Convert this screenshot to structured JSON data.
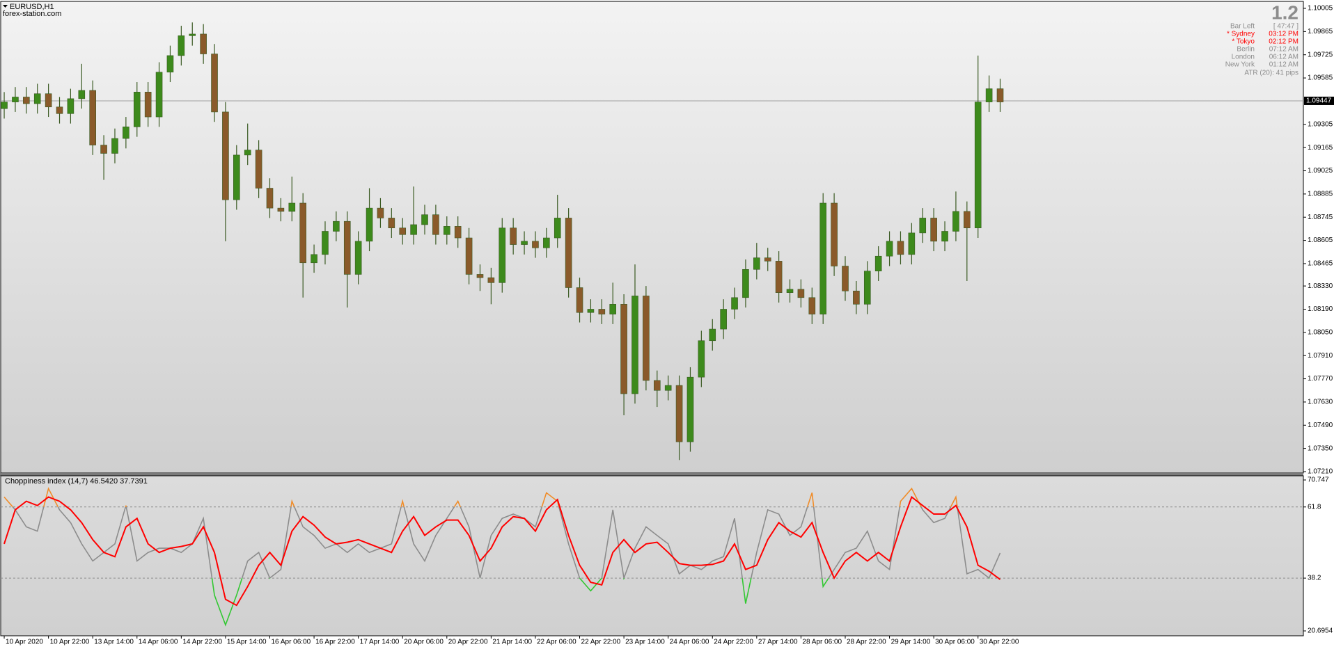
{
  "header": {
    "symbol": "EURUSD,H1",
    "site": "forex-station.com"
  },
  "info_panel": {
    "big": "1.2",
    "rows": [
      {
        "label": "Bar Left",
        "value": "[ 47:47 ]",
        "color": "#8c8c8c"
      },
      {
        "label": "* Sydney",
        "value": "03:12 PM",
        "color": "#ff0000"
      },
      {
        "label": "* Tokyo",
        "value": "02:12 PM",
        "color": "#ff0000"
      },
      {
        "label": "Berlin",
        "value": "07:12 AM",
        "color": "#8c8c8c"
      },
      {
        "label": "London",
        "value": "06:12 AM",
        "color": "#8c8c8c"
      },
      {
        "label": "New York",
        "value": "01:12 AM",
        "color": "#8c8c8c"
      }
    ],
    "atr": "ATR (20): 41 pips"
  },
  "chart_data": [
    {
      "type": "candlestick",
      "xlim": [
        -0.38,
        117.4
      ],
      "ylim": [
        1.0721,
        1.10005
      ],
      "yticks": [
        1.10005,
        1.09865,
        1.09725,
        1.09585,
        1.09305,
        1.09165,
        1.09025,
        1.08885,
        1.08745,
        1.08605,
        1.08465,
        {
          "value": 1.0833,
          "label": "1.08330"
        },
        {
          "value": 1.0819,
          "label": "1.08190"
        },
        {
          "value": 1.0805,
          "label": "1.08050"
        },
        {
          "value": 1.0791,
          "label": "1.07910"
        },
        {
          "value": 1.0777,
          "label": "1.07770"
        },
        {
          "value": 1.0763,
          "label": "1.07630"
        },
        {
          "value": 1.0749,
          "label": "1.07490"
        },
        {
          "value": 1.0735,
          "label": "1.07350"
        },
        {
          "value": 1.0721,
          "label": "1.07210"
        }
      ],
      "xticks": [
        {
          "value": 0,
          "label": "10 Apr 2020"
        },
        {
          "value": 4,
          "label": "10 Apr 22:00"
        },
        {
          "value": 8,
          "label": "13 Apr 14:00"
        },
        {
          "value": 12,
          "label": "14 Apr 06:00"
        },
        {
          "value": 16,
          "label": "14 Apr 22:00"
        },
        {
          "value": 20,
          "label": "15 Apr 14:00"
        },
        {
          "value": 24,
          "label": "16 Apr 06:00"
        },
        {
          "value": 28,
          "label": "16 Apr 22:00"
        },
        {
          "value": 32,
          "label": "17 Apr 14:00"
        },
        {
          "value": 36,
          "label": "20 Apr 06:00"
        },
        {
          "value": 40,
          "label": "20 Apr 22:00"
        },
        {
          "value": 44,
          "label": "21 Apr 14:00"
        },
        {
          "value": 48,
          "label": "22 Apr 06:00"
        },
        {
          "value": 52,
          "label": "22 Apr 22:00"
        },
        {
          "value": 56,
          "label": "23 Apr 14:00"
        },
        {
          "value": 60,
          "label": "24 Apr 06:00"
        },
        {
          "value": 64,
          "label": "24 Apr 22:00"
        },
        {
          "value": 68,
          "label": "27 Apr 14:00"
        },
        {
          "value": 72,
          "label": "28 Apr 06:00"
        },
        {
          "value": 76,
          "label": "28 Apr 22:00"
        },
        {
          "value": 80,
          "label": "29 Apr 14:00"
        },
        {
          "value": 84,
          "label": "30 Apr 06:00"
        },
        {
          "value": 88,
          "label": "30 Apr 22:00"
        }
      ],
      "current_price": 1.09447,
      "up_color": "#3d8a1c",
      "down_color": "#8a5a2a",
      "wick_color": "#3a5a22",
      "open": [
        1.094,
        1.0944,
        1.0947,
        1.0943,
        1.0949,
        1.0941,
        1.0937,
        1.0946,
        1.0951,
        1.0918,
        1.0913,
        1.0922,
        1.0929,
        1.095,
        1.0935,
        1.0962,
        1.0972,
        1.0984,
        1.0985,
        1.0973,
        1.0938,
        1.0885,
        1.0912,
        1.0915,
        1.0892,
        1.088,
        1.0878,
        1.0883,
        1.0847,
        1.0852,
        1.0866,
        1.0872,
        1.084,
        1.086,
        1.088,
        1.0874,
        1.0868,
        1.0864,
        1.087,
        1.0876,
        1.0864,
        1.0869,
        1.0862,
        1.084,
        1.0838,
        1.0835,
        1.0868,
        1.0858,
        1.086,
        1.0856,
        1.0862,
        1.0874,
        1.0832,
        1.0817,
        1.0819,
        1.0816,
        1.0822,
        1.0768,
        1.0827,
        1.0776,
        1.077,
        1.0773,
        1.0739,
        1.0778,
        1.08,
        1.0807,
        1.0819,
        1.0826,
        1.0843,
        1.085,
        1.0848,
        1.0829,
        1.0831,
        1.0826,
        1.0816,
        1.0883,
        1.0845,
        1.083,
        1.0822,
        1.0842,
        1.0851,
        1.086,
        1.0852,
        1.0865,
        1.0874,
        1.086,
        1.0866,
        1.0878,
        1.0868,
        1.0944,
        1.0952
      ],
      "high": [
        1.095,
        1.0953,
        1.0953,
        1.0955,
        1.0955,
        1.0947,
        1.0952,
        1.0967,
        1.0957,
        1.0924,
        1.0928,
        1.0935,
        1.0956,
        1.0956,
        1.0968,
        1.0978,
        1.099,
        1.0992,
        1.0991,
        1.0979,
        1.0944,
        1.0918,
        1.0931,
        1.0921,
        1.0898,
        1.0886,
        1.0899,
        1.0889,
        1.0858,
        1.0872,
        1.0878,
        1.0878,
        1.0866,
        1.0892,
        1.0886,
        1.088,
        1.0874,
        1.0893,
        1.0882,
        1.0882,
        1.0875,
        1.0875,
        1.0868,
        1.0846,
        1.0844,
        1.0874,
        1.0874,
        1.0866,
        1.0866,
        1.0868,
        1.0888,
        1.088,
        1.0838,
        1.0825,
        1.0825,
        1.0835,
        1.0828,
        1.0846,
        1.0833,
        1.0782,
        1.0779,
        1.0779,
        1.0784,
        1.0806,
        1.0813,
        1.0825,
        1.0832,
        1.0849,
        1.0859,
        1.0856,
        1.0854,
        1.0837,
        1.0837,
        1.0832,
        1.0889,
        1.0889,
        1.0851,
        1.0836,
        1.0848,
        1.0857,
        1.0866,
        1.0866,
        1.0871,
        1.088,
        1.088,
        1.0872,
        1.089,
        1.0884,
        1.0972,
        1.096,
        1.0958
      ],
      "low": [
        1.0934,
        1.0938,
        1.0937,
        1.0937,
        1.0935,
        1.0931,
        1.0931,
        1.094,
        1.0912,
        1.0897,
        1.0907,
        1.0916,
        1.0923,
        1.0929,
        1.0929,
        1.0956,
        1.0966,
        1.0978,
        1.0967,
        1.0932,
        1.086,
        1.0879,
        1.0906,
        1.0886,
        1.0874,
        1.0872,
        1.0872,
        1.0826,
        1.0841,
        1.0846,
        1.086,
        1.082,
        1.0834,
        1.0854,
        1.0868,
        1.0862,
        1.0858,
        1.0858,
        1.0864,
        1.0858,
        1.0858,
        1.0856,
        1.0834,
        1.083,
        1.0822,
        1.0829,
        1.0852,
        1.0852,
        1.085,
        1.085,
        1.0856,
        1.0826,
        1.0811,
        1.0811,
        1.081,
        1.081,
        1.0755,
        1.0762,
        1.077,
        1.076,
        1.0764,
        1.0728,
        1.0733,
        1.0772,
        1.0794,
        1.0801,
        1.0813,
        1.082,
        1.0837,
        1.0842,
        1.0823,
        1.0823,
        1.082,
        1.081,
        1.081,
        1.0839,
        1.0824,
        1.0816,
        1.0816,
        1.0836,
        1.0845,
        1.0846,
        1.0846,
        1.0859,
        1.0854,
        1.0854,
        1.086,
        1.0836,
        1.0862,
        1.0938,
        1.0938
      ],
      "close": [
        1.0944,
        1.0947,
        1.0943,
        1.0949,
        1.0941,
        1.0937,
        1.0946,
        1.0951,
        1.0918,
        1.0913,
        1.0922,
        1.0929,
        1.095,
        1.0935,
        1.0962,
        1.0972,
        1.0984,
        1.0985,
        1.0973,
        1.0938,
        1.0885,
        1.0912,
        1.0915,
        1.0892,
        1.088,
        1.0878,
        1.0883,
        1.0847,
        1.0852,
        1.0866,
        1.0872,
        1.084,
        1.086,
        1.088,
        1.0874,
        1.0868,
        1.0864,
        1.087,
        1.0876,
        1.0864,
        1.0869,
        1.0862,
        1.084,
        1.0838,
        1.0835,
        1.0868,
        1.0858,
        1.086,
        1.0856,
        1.0862,
        1.0874,
        1.0832,
        1.0817,
        1.0819,
        1.0816,
        1.0822,
        1.0768,
        1.0827,
        1.0776,
        1.077,
        1.0773,
        1.0739,
        1.0778,
        1.08,
        1.0807,
        1.0819,
        1.0826,
        1.0843,
        1.085,
        1.0848,
        1.0829,
        1.0831,
        1.0826,
        1.0816,
        1.0883,
        1.0845,
        1.083,
        1.0822,
        1.0842,
        1.0851,
        1.086,
        1.0852,
        1.0865,
        1.0874,
        1.086,
        1.0866,
        1.0878,
        1.0868,
        1.0944,
        1.0952,
        1.0944
      ]
    },
    {
      "type": "line",
      "title": "Choppiness index (14,7) 46.5420 37.7391",
      "ylim": [
        20.6954,
        70.747
      ],
      "yticks": [
        70.747,
        61.8,
        38.2,
        20.6954
      ],
      "series": [
        {
          "color": "#8c8c8c",
          "upper_color": "#f08c28",
          "lower_color": "#32c832",
          "values": [
            65.09,
            60.85,
            55.2,
            53.78,
            67.92,
            60.85,
            56.61,
            49.54,
            43.88,
            46.71,
            49.54,
            62.26,
            43.88,
            46.71,
            48.13,
            48.13,
            46.71,
            49.54,
            58.02,
            32.57,
            22.68,
            32.57,
            43.88,
            46.71,
            38.23,
            41.06,
            63.68,
            55.2,
            52.37,
            48.13,
            49.54,
            46.71,
            49.54,
            46.71,
            48.13,
            49.54,
            63.68,
            49.54,
            43.88,
            52.37,
            58.02,
            63.68,
            55.2,
            38.23,
            52.37,
            58.02,
            59.44,
            58.02,
            55.2,
            66.5,
            63.68,
            49.54,
            38.23,
            33.99,
            38.23,
            60.85,
            38.23,
            48.13,
            55.2,
            52.37,
            49.54,
            39.64,
            42.47,
            41.06,
            43.88,
            45.3,
            58.02,
            29.75,
            46.71,
            60.85,
            59.44,
            52.37,
            55.2,
            66.5,
            35.4,
            41.06,
            46.71,
            48.13,
            53.78,
            43.88,
            41.06,
            63.68,
            67.92,
            60.85,
            56.61,
            58.02,
            65.09,
            39.64,
            41.06,
            38.23,
            46.542
          ]
        },
        {
          "color": "#ff0000",
          "values": [
            49.54,
            60.85,
            63.68,
            62.26,
            65.09,
            63.68,
            60.85,
            56.61,
            50.95,
            46.71,
            45.3,
            55.2,
            58.02,
            49.54,
            46.71,
            48.13,
            48.69,
            49.54,
            55.2,
            46.71,
            31.16,
            29.18,
            35.4,
            42.47,
            46.71,
            42.47,
            53.78,
            58.59,
            55.76,
            51.8,
            49.54,
            50.11,
            50.95,
            49.54,
            48.13,
            46.71,
            53.78,
            58.59,
            52.37,
            55.2,
            57.46,
            57.46,
            52.37,
            43.88,
            48.13,
            55.2,
            58.59,
            58.02,
            53.78,
            60.85,
            64.24,
            52.37,
            42.47,
            36.81,
            35.97,
            46.71,
            50.95,
            46.71,
            49.54,
            50.11,
            46.71,
            43.03,
            42.47,
            42.47,
            42.75,
            43.88,
            49.54,
            41.06,
            42.47,
            50.95,
            56.61,
            53.78,
            51.8,
            56.61,
            46.71,
            38.23,
            43.88,
            46.71,
            43.88,
            46.71,
            43.88,
            55.2,
            65.09,
            62.26,
            59.44,
            59.44,
            62.26,
            55.2,
            42.47,
            40.49,
            37.7391
          ]
        }
      ]
    }
  ]
}
